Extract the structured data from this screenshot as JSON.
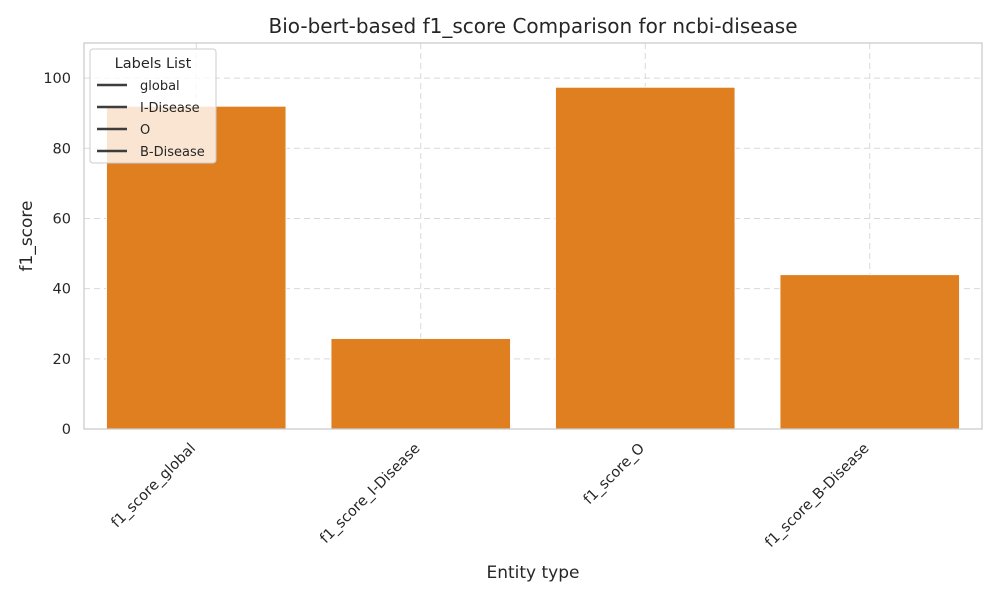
{
  "chart_data": {
    "type": "bar",
    "title": "Bio-bert-based  f1_score Comparison for ncbi-disease",
    "xlabel": "Entity type",
    "ylabel": "f1_score",
    "categories": [
      "f1_score_global",
      "f1_score_I-Disease",
      "f1_score_O",
      "f1_score_B-Disease"
    ],
    "values": [
      92,
      25.8,
      97.4,
      44
    ],
    "ylim": [
      0,
      110
    ],
    "yticks": [
      0,
      20,
      40,
      60,
      80,
      100
    ],
    "grid": true,
    "bar_color": "#e07f1f",
    "legend": {
      "title": "Labels List",
      "placement": "top-left",
      "entries": [
        "global",
        "I-Disease",
        "O",
        "B-Disease"
      ]
    }
  }
}
